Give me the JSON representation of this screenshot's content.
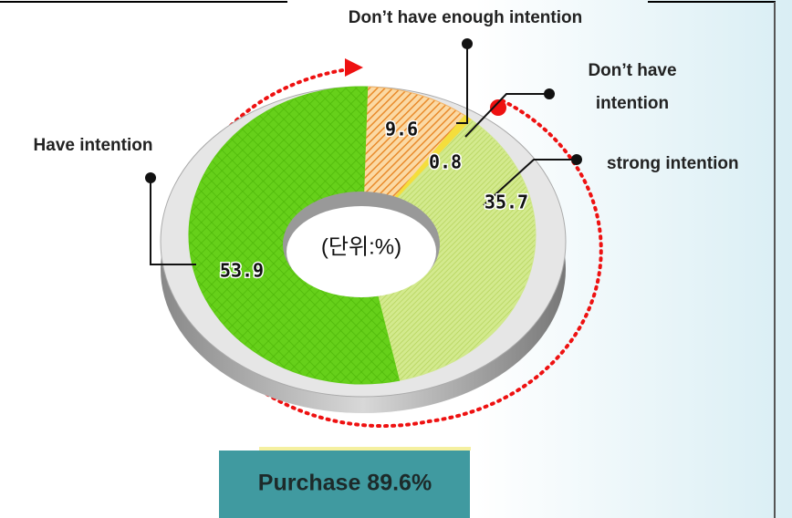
{
  "chart_data": {
    "type": "pie",
    "donut": true,
    "center_label": "(단위:%)",
    "categories": [
      "Don’t have enough intention",
      "Don’t have intention",
      "strong intention",
      "Have intention"
    ],
    "values": [
      9.6,
      0.8,
      35.7,
      53.9
    ],
    "colors": [
      "#f3b466",
      "#f4de3c",
      "#cfe78a",
      "#60cc14"
    ],
    "annotation": "Purchase 89.6%"
  }
}
